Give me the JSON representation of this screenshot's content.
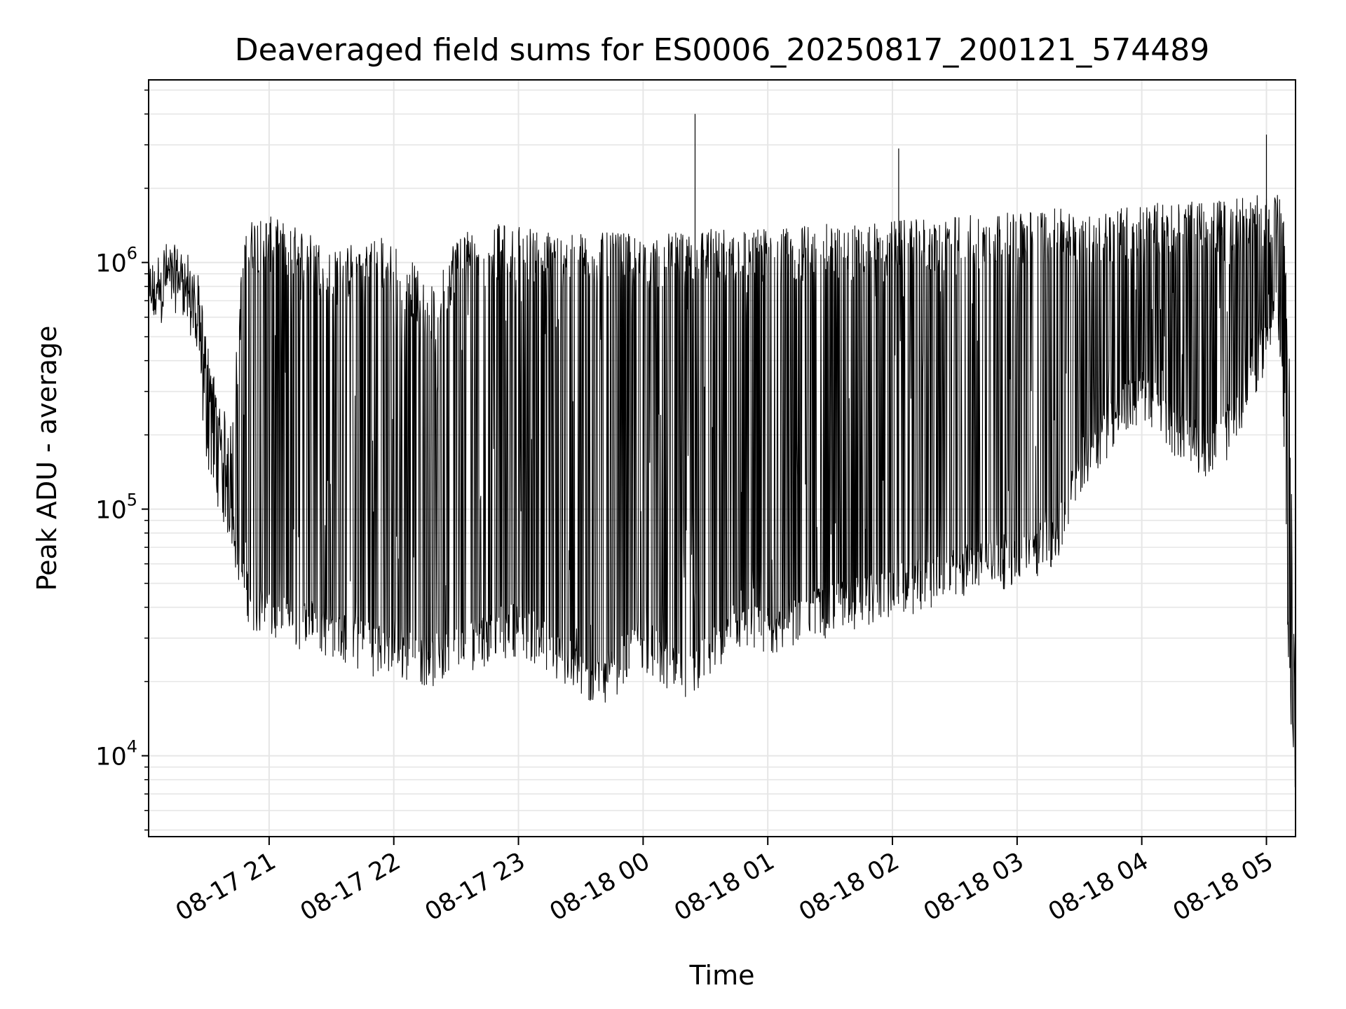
{
  "chart_data": {
    "type": "line",
    "title": "Deaveraged field sums for ES0006_20250817_200121_574489",
    "xlabel": "Time",
    "ylabel": "Peak ADU - average",
    "y_scale": "log",
    "ylim": [
      4700,
      5500000
    ],
    "xlim": [
      "2025-08-17 20:02",
      "2025-08-18 05:14"
    ],
    "grid": true,
    "line_color": "#000000",
    "grid_color": "#e6e6e6",
    "x_ticks": [
      "08-17 21",
      "08-17 22",
      "08-17 23",
      "08-18 00",
      "08-18 01",
      "08-18 02",
      "08-18 03",
      "08-18 04",
      "08-18 05"
    ],
    "y_ticks": [
      {
        "base": "10",
        "exp": "4",
        "value": 10000
      },
      {
        "base": "10",
        "exp": "5",
        "value": 100000
      },
      {
        "base": "10",
        "exp": "6",
        "value": 1000000
      }
    ],
    "series": [
      {
        "x": [
          "2025-08-17 20:02",
          "2025-08-17 20:10",
          "2025-08-17 20:18",
          "2025-08-17 20:25",
          "2025-08-17 20:30",
          "2025-08-17 20:36",
          "2025-08-17 20:42",
          "2025-08-17 20:48",
          "2025-08-17 20:54",
          "2025-08-17 21:00",
          "2025-08-17 21:10",
          "2025-08-17 21:20",
          "2025-08-17 21:30",
          "2025-08-17 21:40",
          "2025-08-17 21:50",
          "2025-08-17 22:00",
          "2025-08-17 22:10",
          "2025-08-17 22:20",
          "2025-08-17 22:30",
          "2025-08-17 22:40",
          "2025-08-17 22:50",
          "2025-08-17 23:00",
          "2025-08-17 23:10",
          "2025-08-17 23:20",
          "2025-08-17 23:30",
          "2025-08-17 23:40",
          "2025-08-17 23:50",
          "2025-08-18 00:00",
          "2025-08-18 00:10",
          "2025-08-18 00:20",
          "2025-08-18 00:30",
          "2025-08-18 00:40",
          "2025-08-18 00:50",
          "2025-08-18 01:00",
          "2025-08-18 01:10",
          "2025-08-18 01:20",
          "2025-08-18 01:30",
          "2025-08-18 01:40",
          "2025-08-18 01:50",
          "2025-08-18 02:00",
          "2025-08-18 02:10",
          "2025-08-18 02:20",
          "2025-08-18 02:30",
          "2025-08-18 02:40",
          "2025-08-18 02:50",
          "2025-08-18 03:00",
          "2025-08-18 03:10",
          "2025-08-18 03:20",
          "2025-08-18 03:30",
          "2025-08-18 03:40",
          "2025-08-18 03:50",
          "2025-08-18 04:00",
          "2025-08-18 04:10",
          "2025-08-18 04:20",
          "2025-08-18 04:30",
          "2025-08-18 04:40",
          "2025-08-18 04:50",
          "2025-08-18 05:00",
          "2025-08-18 05:05",
          "2025-08-18 05:08",
          "2025-08-18 05:11",
          "2025-08-18 05:14"
        ],
        "low": [
          600000,
          800000,
          850000,
          500000,
          200000,
          130000,
          90000,
          50000,
          40000,
          38000,
          36000,
          35000,
          33000,
          30000,
          28000,
          27000,
          26000,
          25000,
          27000,
          30000,
          32000,
          34000,
          30000,
          25000,
          22000,
          20000,
          25000,
          30000,
          24000,
          20000,
          26000,
          30000,
          32000,
          33000,
          35000,
          38000,
          40000,
          42000,
          45000,
          48000,
          50000,
          52000,
          55000,
          60000,
          62000,
          65000,
          70000,
          80000,
          150000,
          200000,
          250000,
          300000,
          250000,
          200000,
          180000,
          200000,
          300000,
          500000,
          800000,
          300000,
          20000,
          8000
        ],
        "high": [
          900000,
          1100000,
          1050000,
          900000,
          450000,
          250000,
          200000,
          1300000,
          1400000,
          1400000,
          1300000,
          1200000,
          1000000,
          1100000,
          1200000,
          1100000,
          900000,
          700000,
          1200000,
          1300000,
          1300000,
          1300000,
          1250000,
          1200000,
          1200000,
          1200000,
          1200000,
          1150000,
          1200000,
          1200000,
          1250000,
          1250000,
          1250000,
          1250000,
          1250000,
          1300000,
          1300000,
          1300000,
          1300000,
          1350000,
          1350000,
          1400000,
          1400000,
          1450000,
          1450000,
          1450000,
          1500000,
          1500000,
          1500000,
          1500000,
          1550000,
          1550000,
          1600000,
          1600000,
          1600000,
          1650000,
          1700000,
          1700000,
          1800000,
          1500000,
          400000,
          12000
        ],
        "spikes": [
          {
            "x": "2025-08-18 00:25",
            "value": 4000000
          },
          {
            "x": "2025-08-18 02:03",
            "value": 2900000
          },
          {
            "x": "2025-08-18 05:00",
            "value": 3300000
          }
        ]
      }
    ]
  }
}
